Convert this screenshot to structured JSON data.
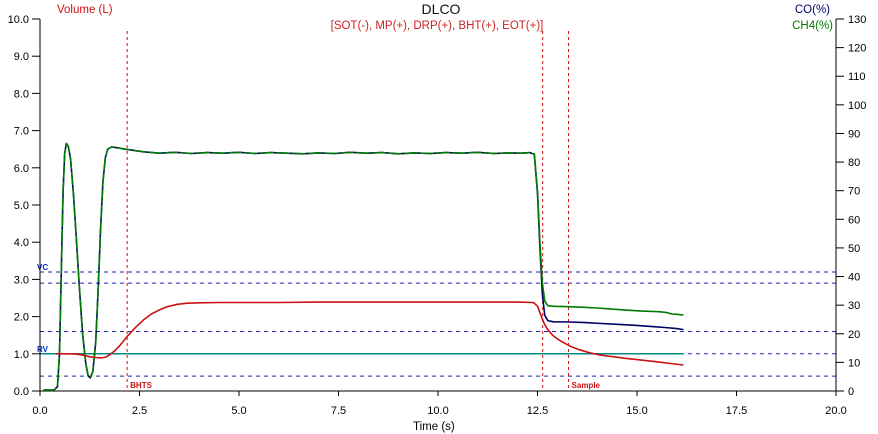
{
  "header": {
    "title": "DLCO",
    "subtitle": "[SOT(-), MP(+), DRP(+), BHT(+), EOT(+)]",
    "subtitle_color": "#cc2222"
  },
  "axes": {
    "left": {
      "title": "Volume (L)",
      "color": "#cc1111",
      "range": [
        0,
        10
      ],
      "ticks": [
        "0.0",
        "1.0",
        "2.0",
        "3.0",
        "4.0",
        "5.0",
        "6.0",
        "7.0",
        "8.0",
        "9.0",
        "10.0"
      ]
    },
    "right": {
      "co_title": "CO(%)",
      "co_color": "#000066",
      "ch4_title": "CH4(%)",
      "ch4_color": "#007a00",
      "range": [
        0,
        130
      ],
      "ticks": [
        "0",
        "10",
        "20",
        "30",
        "40",
        "50",
        "60",
        "70",
        "80",
        "90",
        "100",
        "110",
        "120",
        "130"
      ]
    },
    "x": {
      "title": "Time (s)",
      "range": [
        0,
        20
      ],
      "ticks": [
        "0.0",
        "2.5",
        "5.0",
        "7.5",
        "10.0",
        "12.5",
        "15.0",
        "17.5",
        "20.0"
      ]
    }
  },
  "annotations": {
    "reference_line_color": "#2222b2",
    "reference_label_color": "#0033cc",
    "reference_lines": [
      {
        "y": 3.2,
        "label": "VC"
      },
      {
        "y": 2.9,
        "label": ""
      },
      {
        "y": 1.6,
        "label": ""
      },
      {
        "y": 1.0,
        "label": "RV"
      },
      {
        "y": 0.4,
        "label": ""
      }
    ],
    "teal_line": {
      "y": 1.0,
      "x_start": 0,
      "x_end": 16.15,
      "color": "#008b8b"
    },
    "event_marker_color": "#cc1111",
    "event_markers": [
      {
        "x": 2.19,
        "label": "BHTS"
      },
      {
        "x": 12.63,
        "label": ""
      },
      {
        "x": 13.28,
        "label": "Sample"
      }
    ]
  },
  "chart_data": {
    "type": "line",
    "title": "DLCO",
    "xlabel": "Time (s)",
    "x_range": [
      0,
      20
    ],
    "left_axis": {
      "label": "Volume (L)",
      "range": [
        0,
        10
      ]
    },
    "right_axis": {
      "labels": [
        "CO(%)",
        "CH4(%)"
      ],
      "range": [
        0,
        130
      ]
    },
    "grid": "horizontal-dashed-reference-lines-only",
    "note": "CO and CH4 traces overlap along mixed_points until 12.42 s, then diverge",
    "mixed_points": [
      [
        0.1,
        0.3
      ],
      [
        0.35,
        0.3
      ],
      [
        0.44,
        1.5
      ],
      [
        0.49,
        13
      ],
      [
        0.54,
        45
      ],
      [
        0.58,
        70
      ],
      [
        0.62,
        83
      ],
      [
        0.66,
        86.5
      ],
      [
        0.71,
        85.5
      ],
      [
        0.77,
        81
      ],
      [
        0.84,
        69
      ],
      [
        0.91,
        54
      ],
      [
        0.99,
        36
      ],
      [
        1.07,
        20
      ],
      [
        1.15,
        9.5
      ],
      [
        1.21,
        5.2
      ],
      [
        1.27,
        4.6
      ],
      [
        1.33,
        7
      ],
      [
        1.4,
        17
      ],
      [
        1.46,
        35
      ],
      [
        1.52,
        56
      ],
      [
        1.58,
        73
      ],
      [
        1.64,
        81.5
      ],
      [
        1.7,
        84.5
      ],
      [
        1.8,
        85.3
      ],
      [
        1.95,
        85.0
      ],
      [
        2.1,
        84.6
      ],
      [
        2.3,
        84.2
      ],
      [
        2.6,
        83.6
      ],
      [
        3.0,
        83.1
      ],
      [
        3.4,
        83.4
      ],
      [
        3.8,
        83.0
      ],
      [
        4.2,
        83.3
      ],
      [
        4.6,
        83.1
      ],
      [
        5.0,
        83.4
      ],
      [
        5.4,
        83.0
      ],
      [
        5.8,
        83.3
      ],
      [
        6.2,
        83.1
      ],
      [
        6.6,
        82.9
      ],
      [
        7.0,
        83.2
      ],
      [
        7.4,
        83.0
      ],
      [
        7.8,
        83.4
      ],
      [
        8.2,
        83.1
      ],
      [
        8.6,
        83.3
      ],
      [
        9.0,
        82.9
      ],
      [
        9.4,
        83.2
      ],
      [
        9.8,
        83.0
      ],
      [
        10.2,
        83.3
      ],
      [
        10.6,
        83.1
      ],
      [
        11.0,
        83.4
      ],
      [
        11.4,
        83.0
      ],
      [
        11.8,
        83.2
      ],
      [
        12.1,
        83.1
      ],
      [
        12.3,
        83.3
      ],
      [
        12.42,
        82.8
      ]
    ],
    "series": [
      {
        "name": "CH4",
        "unit": "%",
        "axis": "right",
        "color": "#007a00",
        "tail_points": [
          [
            12.42,
            82.8
          ],
          [
            12.5,
            70
          ],
          [
            12.56,
            52
          ],
          [
            12.62,
            38
          ],
          [
            12.68,
            31.5
          ],
          [
            12.76,
            29.8
          ],
          [
            12.9,
            29.6
          ],
          [
            13.2,
            29.5
          ],
          [
            13.6,
            29.3
          ],
          [
            14.0,
            29.0
          ],
          [
            14.4,
            28.6
          ],
          [
            14.8,
            28.2
          ],
          [
            15.2,
            27.9
          ],
          [
            15.55,
            27.7
          ],
          [
            15.75,
            27.4
          ],
          [
            15.88,
            26.9
          ],
          [
            16.0,
            26.8
          ],
          [
            16.15,
            26.6
          ]
        ]
      },
      {
        "name": "CO",
        "unit": "%",
        "axis": "right",
        "color": "#000066",
        "tail_points": [
          [
            12.42,
            82.8
          ],
          [
            12.5,
            69
          ],
          [
            12.56,
            50
          ],
          [
            12.62,
            34
          ],
          [
            12.68,
            26.5
          ],
          [
            12.76,
            24.6
          ],
          [
            12.9,
            24.2
          ],
          [
            13.3,
            24.1
          ],
          [
            13.7,
            23.9
          ],
          [
            14.1,
            23.6
          ],
          [
            14.5,
            23.3
          ],
          [
            14.9,
            23.0
          ],
          [
            15.3,
            22.6
          ],
          [
            15.7,
            22.2
          ],
          [
            16.0,
            21.8
          ],
          [
            16.15,
            21.5
          ]
        ]
      },
      {
        "name": "Volume",
        "unit": "L",
        "axis": "left",
        "color": "#cc1111",
        "points": [
          [
            0.4,
            1.0
          ],
          [
            0.75,
            1.0
          ],
          [
            0.95,
            0.99
          ],
          [
            1.1,
            0.96
          ],
          [
            1.25,
            0.92
          ],
          [
            1.4,
            0.9
          ],
          [
            1.55,
            0.89
          ],
          [
            1.65,
            0.91
          ],
          [
            1.75,
            0.97
          ],
          [
            1.88,
            1.08
          ],
          [
            2.02,
            1.24
          ],
          [
            2.2,
            1.48
          ],
          [
            2.4,
            1.71
          ],
          [
            2.6,
            1.91
          ],
          [
            2.8,
            2.07
          ],
          [
            3.0,
            2.18
          ],
          [
            3.2,
            2.27
          ],
          [
            3.45,
            2.33
          ],
          [
            3.7,
            2.36
          ],
          [
            4.0,
            2.37
          ],
          [
            4.5,
            2.38
          ],
          [
            5.0,
            2.38
          ],
          [
            6.0,
            2.38
          ],
          [
            7.0,
            2.39
          ],
          [
            8.0,
            2.39
          ],
          [
            9.0,
            2.39
          ],
          [
            10.0,
            2.39
          ],
          [
            11.0,
            2.39
          ],
          [
            12.0,
            2.39
          ],
          [
            12.4,
            2.38
          ],
          [
            12.5,
            2.28
          ],
          [
            12.58,
            2.05
          ],
          [
            12.66,
            1.83
          ],
          [
            12.75,
            1.66
          ],
          [
            12.88,
            1.5
          ],
          [
            13.0,
            1.4
          ],
          [
            13.15,
            1.3
          ],
          [
            13.35,
            1.19
          ],
          [
            13.55,
            1.11
          ],
          [
            13.8,
            1.03
          ],
          [
            14.05,
            0.97
          ],
          [
            14.35,
            0.93
          ],
          [
            14.7,
            0.88
          ],
          [
            15.05,
            0.84
          ],
          [
            15.45,
            0.79
          ],
          [
            15.85,
            0.74
          ],
          [
            16.15,
            0.7
          ]
        ]
      }
    ]
  }
}
